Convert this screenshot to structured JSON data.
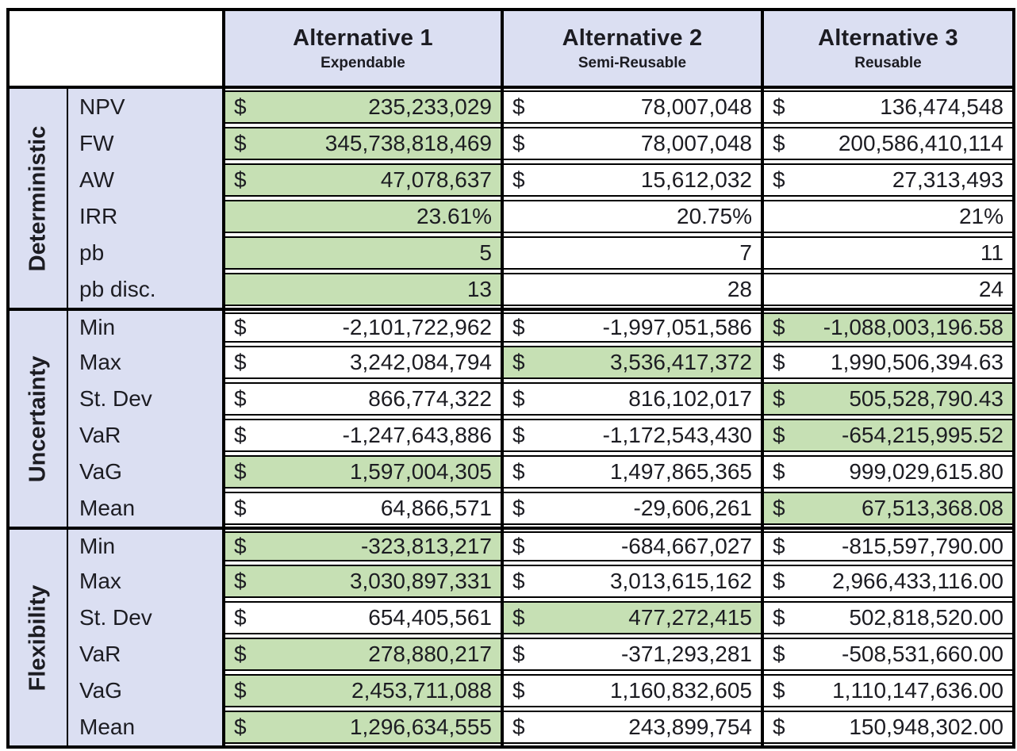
{
  "colors": {
    "highlight_green": "#C6E0B4",
    "header_lavender": "#DBDFF2",
    "border": "#000000"
  },
  "chart_data": {
    "type": "table",
    "columns": [
      {
        "title": "Alternative 1",
        "subtitle": "Expendable"
      },
      {
        "title": "Alternative 2",
        "subtitle": "Semi-Reusable"
      },
      {
        "title": "Alternative 3",
        "subtitle": "Reusable"
      }
    ],
    "groups": [
      {
        "label": "Deterministic",
        "rows": [
          {
            "label": "NPV",
            "cells": [
              {
                "currency": "$",
                "value": "235,233,029",
                "highlight": true
              },
              {
                "currency": "$",
                "value": "78,007,048",
                "highlight": false
              },
              {
                "currency": "$",
                "value": "136,474,548",
                "highlight": false
              }
            ]
          },
          {
            "label": "FW",
            "cells": [
              {
                "currency": "$",
                "value": "345,738,818,469",
                "highlight": true
              },
              {
                "currency": "$",
                "value": "78,007,048",
                "highlight": false
              },
              {
                "currency": "$",
                "value": "200,586,410,114",
                "highlight": false
              }
            ]
          },
          {
            "label": "AW",
            "cells": [
              {
                "currency": "$",
                "value": "47,078,637",
                "highlight": true
              },
              {
                "currency": "$",
                "value": "15,612,032",
                "highlight": false
              },
              {
                "currency": "$",
                "value": "27,313,493",
                "highlight": false
              }
            ]
          },
          {
            "label": "IRR",
            "cells": [
              {
                "currency": "",
                "value": "23.61%",
                "highlight": true
              },
              {
                "currency": "",
                "value": "20.75%",
                "highlight": false
              },
              {
                "currency": "",
                "value": "21%",
                "highlight": false
              }
            ]
          },
          {
            "label": "pb",
            "cells": [
              {
                "currency": "",
                "value": "5",
                "highlight": true
              },
              {
                "currency": "",
                "value": "7",
                "highlight": false
              },
              {
                "currency": "",
                "value": "11",
                "highlight": false
              }
            ]
          },
          {
            "label": "pb disc.",
            "cells": [
              {
                "currency": "",
                "value": "13",
                "highlight": true
              },
              {
                "currency": "",
                "value": "28",
                "highlight": false
              },
              {
                "currency": "",
                "value": "24",
                "highlight": false
              }
            ]
          }
        ]
      },
      {
        "label": "Uncertainty",
        "rows": [
          {
            "label": "Min",
            "cells": [
              {
                "currency": "$",
                "value": "-2,101,722,962",
                "highlight": false
              },
              {
                "currency": "$",
                "value": "-1,997,051,586",
                "highlight": false
              },
              {
                "currency": "$",
                "value": "-1,088,003,196.58",
                "highlight": true
              }
            ]
          },
          {
            "label": "Max",
            "cells": [
              {
                "currency": "$",
                "value": "3,242,084,794",
                "highlight": false
              },
              {
                "currency": "$",
                "value": "3,536,417,372",
                "highlight": true
              },
              {
                "currency": "$",
                "value": "1,990,506,394.63",
                "highlight": false
              }
            ]
          },
          {
            "label": "St. Dev",
            "cells": [
              {
                "currency": "$",
                "value": "866,774,322",
                "highlight": false
              },
              {
                "currency": "$",
                "value": "816,102,017",
                "highlight": false
              },
              {
                "currency": "$",
                "value": "505,528,790.43",
                "highlight": true
              }
            ]
          },
          {
            "label": "VaR",
            "cells": [
              {
                "currency": "$",
                "value": "-1,247,643,886",
                "highlight": false
              },
              {
                "currency": "$",
                "value": "-1,172,543,430",
                "highlight": false
              },
              {
                "currency": "$",
                "value": "-654,215,995.52",
                "highlight": true
              }
            ]
          },
          {
            "label": "VaG",
            "cells": [
              {
                "currency": "$",
                "value": "1,597,004,305",
                "highlight": true
              },
              {
                "currency": "$",
                "value": "1,497,865,365",
                "highlight": false
              },
              {
                "currency": "$",
                "value": "999,029,615.80",
                "highlight": false
              }
            ]
          },
          {
            "label": "Mean",
            "cells": [
              {
                "currency": "$",
                "value": "64,866,571",
                "highlight": false
              },
              {
                "currency": "$",
                "value": "-29,606,261",
                "highlight": false
              },
              {
                "currency": "$",
                "value": "67,513,368.08",
                "highlight": true
              }
            ]
          }
        ]
      },
      {
        "label": "Flexibility",
        "rows": [
          {
            "label": "Min",
            "cells": [
              {
                "currency": "$",
                "value": "-323,813,217",
                "highlight": true
              },
              {
                "currency": "$",
                "value": "-684,667,027",
                "highlight": false
              },
              {
                "currency": "$",
                "value": "-815,597,790.00",
                "highlight": false
              }
            ]
          },
          {
            "label": "Max",
            "cells": [
              {
                "currency": "$",
                "value": "3,030,897,331",
                "highlight": true
              },
              {
                "currency": "$",
                "value": "3,013,615,162",
                "highlight": false
              },
              {
                "currency": "$",
                "value": "2,966,433,116.00",
                "highlight": false
              }
            ]
          },
          {
            "label": "St. Dev",
            "cells": [
              {
                "currency": "$",
                "value": "654,405,561",
                "highlight": false
              },
              {
                "currency": "$",
                "value": "477,272,415",
                "highlight": true
              },
              {
                "currency": "$",
                "value": "502,818,520.00",
                "highlight": false
              }
            ]
          },
          {
            "label": "VaR",
            "cells": [
              {
                "currency": "$",
                "value": "278,880,217",
                "highlight": true
              },
              {
                "currency": "$",
                "value": "-371,293,281",
                "highlight": false
              },
              {
                "currency": "$",
                "value": "-508,531,660.00",
                "highlight": false
              }
            ]
          },
          {
            "label": "VaG",
            "cells": [
              {
                "currency": "$",
                "value": "2,453,711,088",
                "highlight": true
              },
              {
                "currency": "$",
                "value": "1,160,832,605",
                "highlight": false
              },
              {
                "currency": "$",
                "value": "1,110,147,636.00",
                "highlight": false
              }
            ]
          },
          {
            "label": "Mean",
            "cells": [
              {
                "currency": "$",
                "value": "1,296,634,555",
                "highlight": true
              },
              {
                "currency": "$",
                "value": "243,899,754",
                "highlight": false
              },
              {
                "currency": "$",
                "value": "150,948,302.00",
                "highlight": false
              }
            ]
          }
        ]
      }
    ]
  }
}
